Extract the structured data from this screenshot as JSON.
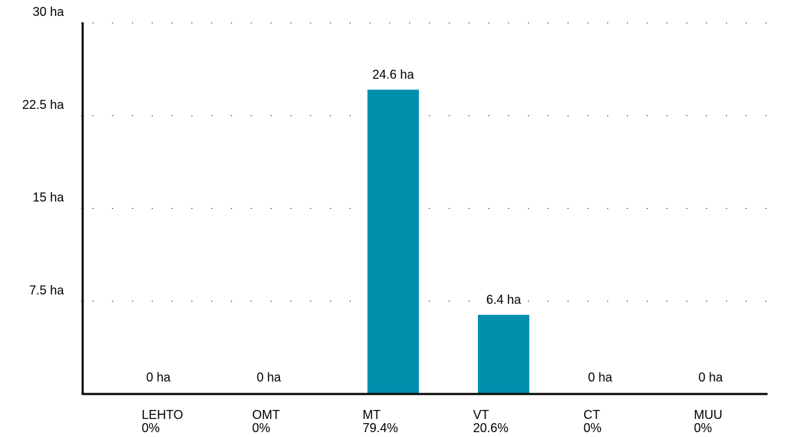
{
  "chart_data": {
    "type": "bar",
    "title": "",
    "xlabel": "",
    "ylabel": "",
    "ylim": [
      0,
      30
    ],
    "yticks": [
      {
        "value": 7.5,
        "label": "7.5 ha"
      },
      {
        "value": 15,
        "label": "15 ha"
      },
      {
        "value": 22.5,
        "label": "22.5 ha"
      },
      {
        "value": 30,
        "label": "30 ha"
      }
    ],
    "grid": true,
    "grid_style": "dotted",
    "legend": "none",
    "categories": [
      "LEHTO",
      "OMT",
      "MT",
      "VT",
      "CT",
      "MUU"
    ],
    "percentages": [
      "0%",
      "0%",
      "79.4%",
      "20.6%",
      "0%",
      "0%"
    ],
    "values": [
      0,
      0,
      24.6,
      6.4,
      0,
      0
    ],
    "value_labels": [
      "0 ha",
      "0 ha",
      "24.6 ha",
      "6.4 ha",
      "0 ha",
      "0 ha"
    ],
    "bar_color": "#008fac"
  }
}
